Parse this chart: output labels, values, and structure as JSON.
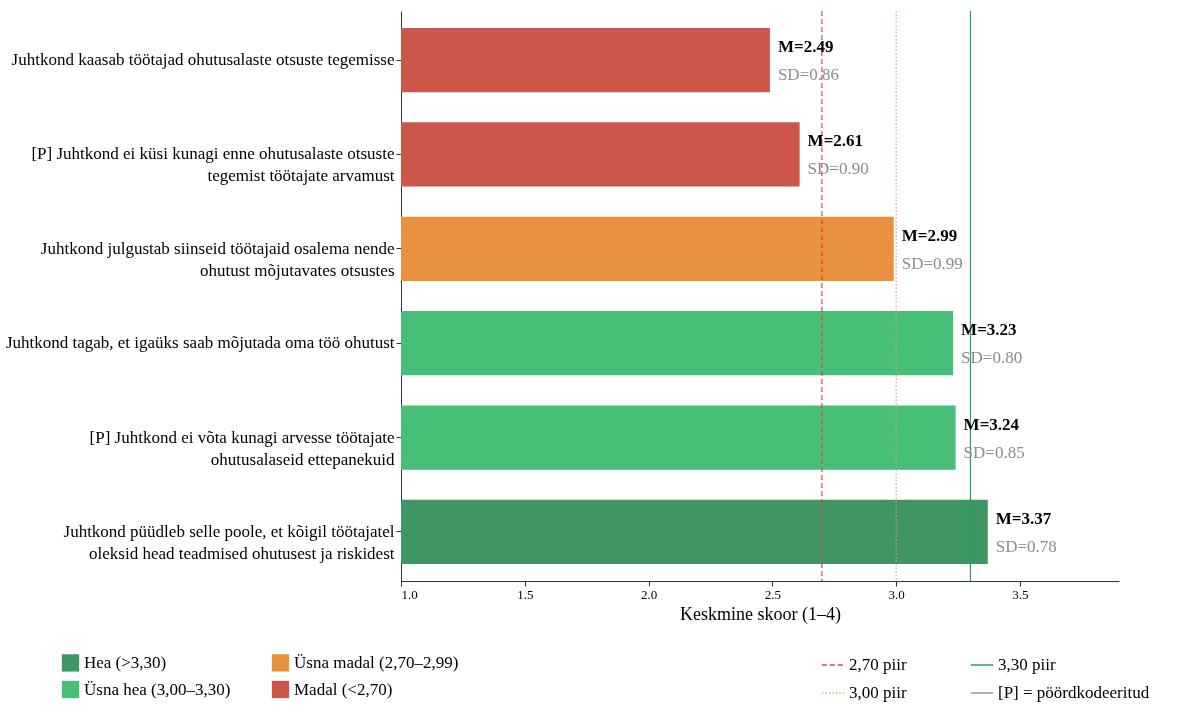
{
  "chart_data": {
    "type": "bar",
    "orientation": "horizontal",
    "xlabel": "Keskmine skoor (1–4)",
    "categories": [
      "Juhtkond kaasab töötajad ohutusalaste otsuste tegemisse",
      "[P] Juhtkond ei küsi kunagi  enne ohutusalaste otsuste tegemist töötajate arvamust",
      "Juhtkond julgustab siinseid töötajaid osalema nende ohutust mõjutavates otsustes",
      "Juhtkond tagab, et igaüks saab mõjutada oma töö ohutust",
      "[P] Juhtkond ei võta kunagi arvesse töötajate ohutusalaseid  ettepanekuid",
      "Juhtkond püüdleb selle poole, et kõigil töötajatel oleksid head teadmised ohutusest ja riskidest"
    ],
    "series": [
      {
        "name": "Hea (>3,30)",
        "color": "#3d9663",
        "values": [
          null,
          null,
          null,
          null,
          null,
          3.37
        ]
      },
      {
        "name": "Üsna hea (3,00–3,30)",
        "color": "#47bf79",
        "values": [
          null,
          null,
          null,
          3.23,
          3.24,
          null
        ]
      },
      {
        "name": "Üsna madal (2,70–2,99)",
        "color": "#e8913f",
        "values": [
          null,
          null,
          2.99,
          null,
          null,
          null
        ]
      },
      {
        "name": "Madal (<2,70)",
        "color": "#cd564b",
        "values": [
          2.49,
          2.61,
          null,
          null,
          null,
          null
        ]
      }
    ],
    "value_labels": [
      "M=2.49",
      "M=2.61",
      "M=2.99",
      "M=3.23",
      "M=3.24",
      "M=3.37"
    ],
    "annotations": [
      {
        "text": "SD=0.86",
        "x": 2.49,
        "y": "Juhtkond kaasab töötajad ohutusalaste otsuste tegemisse"
      },
      {
        "text": "SD=0.90",
        "x": 2.61,
        "y": "[P] Juhtkond ei küsi kunagi  enne ohutusalaste otsuste tegemist töötajate arvamust"
      },
      {
        "text": "SD=0.99",
        "x": 2.99,
        "y": "Juhtkond julgustab siinseid töötajaid osalema nende ohutust mõjutavates otsustes"
      },
      {
        "text": "SD=0.80",
        "x": 3.23,
        "y": "Juhtkond tagab, et igaüks saab mõjutada oma töö ohutust"
      },
      {
        "text": "SD=0.85",
        "x": 3.24,
        "y": "[P] Juhtkond ei võta kunagi arvesse töötajate ohutusalaseid  ettepanekuid"
      },
      {
        "text": "SD=0.78",
        "x": 3.37,
        "y": "Juhtkond püüdleb selle poole, et kõigil töötajatel oleksid head teadmised ohutusest ja riskidest"
      },
      "[P] = pöördkodeeritud"
    ],
    "ref_lines": [
      {
        "axis": "x",
        "value": 2.7,
        "label": "2,70 piir",
        "color": "#e0463c",
        "line_style": "dashed"
      },
      {
        "axis": "x",
        "value": 3.0,
        "label": "3,00 piir",
        "color": "#f0a060",
        "line_style": "dotted"
      },
      {
        "axis": "x",
        "value": 3.3,
        "label": "3,30 piir",
        "color": "#2e9e55",
        "line_style": "solid"
      }
    ],
    "xlim": [
      1,
      3.9
    ],
    "xticks": [
      {
        "value": 1,
        "label": "1.0"
      },
      {
        "value": 1.5,
        "label": "1.5"
      },
      {
        "value": 2,
        "label": "2.0"
      },
      {
        "value": 2.5,
        "label": "2.5"
      },
      {
        "value": 3,
        "label": "3.0"
      },
      {
        "value": 3.5,
        "label": "3.5"
      }
    ],
    "legend": "bottom",
    "grid": false
  }
}
